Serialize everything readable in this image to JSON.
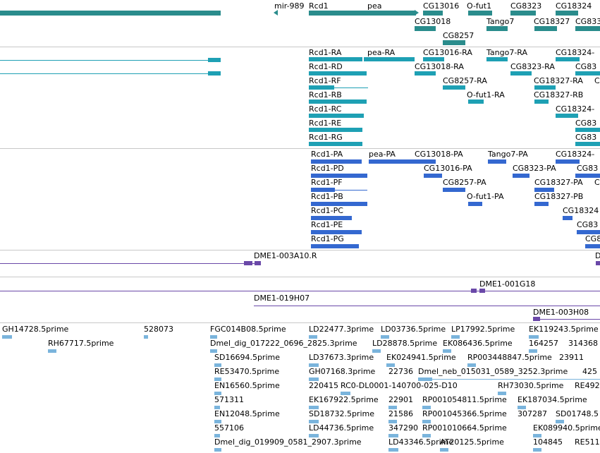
{
  "tracks": {
    "genes": {
      "labels": [
        "mir-989",
        "Rcd1",
        "pea",
        "CG13016",
        "O-fut1",
        "CG8323",
        "CG18324",
        "CG13018",
        "Tango7",
        "CG18327",
        "CG833",
        "CG8257"
      ]
    },
    "transcripts": {
      "labels": [
        "Rcd1-RA",
        "pea-RA",
        "CG13016-RA",
        "Tango7-RA",
        "CG18324-",
        "Rcd1-RD",
        "CG13018-RA",
        "CG8323-RA",
        "CG83",
        "Rcd1-RF",
        "CG8257-RA",
        "CG18327-RA",
        "C",
        "Rcd1-RB",
        "O-fut1-RA",
        "CG18327-RB",
        "Rcd1-RC",
        "CG18324-",
        "Rcd1-RE",
        "CG83",
        "Rcd1-RG",
        "CG83"
      ]
    },
    "proteins": {
      "labels": [
        "Rcd1-PA",
        "pea-PA",
        "CG13018-PA",
        "Tango7-PA",
        "CG18324-",
        "Rcd1-PD",
        "CG13016-PA",
        "CG8323-PA",
        "CG83",
        "Rcd1-PF",
        "CG8257-PA",
        "CG18327-PA",
        "C",
        "Rcd1-PB",
        "O-fut1-PA",
        "CG18327-PB",
        "Rcd1-PC",
        "CG18324",
        "Rcd1-PE",
        "CG83",
        "Rcd1-PG",
        "CG8"
      ]
    },
    "clones_a": {
      "labels": [
        "DME1-003A10.R",
        "D"
      ]
    },
    "clones_b": {
      "labels": [
        "DME1-001G18",
        "DME1-019H07",
        "DME1-003H08"
      ]
    },
    "ests": {
      "labels": [
        "GH14728.5prime",
        "528073",
        "FGC014B08.5prime",
        "LD22477.3prime",
        "LD03736.5prime",
        "LP17992.5prime",
        "EK119243.5prime",
        "RH67717.5prime",
        "Dmel_dig_017222_0696_2825.3prime",
        "LD28878.5prime",
        "EK086436.5prime",
        "164257",
        "314368",
        "SD16694.5prime",
        "LD37673.3prime",
        "EK024941.5prime",
        "RP003448847.5prime",
        "23911",
        "RE53470.5prime",
        "GH07168.3prime",
        "22736",
        "Dmel_neb_015031_0589_3252.3prime",
        "425",
        "EN16560.5prime",
        "220415",
        "RC0-DL0001-140700-025-D10",
        "RH73030.5prime",
        "RE492",
        "571311",
        "EK167922.5prime",
        "22901",
        "RP001054811.5prime",
        "EK187034.5prime",
        "EN12048.5prime",
        "SD18732.5prime",
        "21586",
        "RP001045366.5prime",
        "307287",
        "SD01748.5",
        "557106",
        "LD44736.5prime",
        "347290",
        "RP001010664.5prime",
        "EK089940.5prime",
        "Dmel_dig_019909_0581_2907.3prime",
        "LD43346.5prime",
        "AT20125.5prime",
        "104845",
        "RE511"
      ]
    }
  },
  "colors": {
    "gene": "#2a8c8c",
    "transcript": "#1ea0b4",
    "protein": "#3468d0",
    "clone": "#6a48a8",
    "est": "#7ab4dc",
    "divider": "#c8c8c8"
  }
}
